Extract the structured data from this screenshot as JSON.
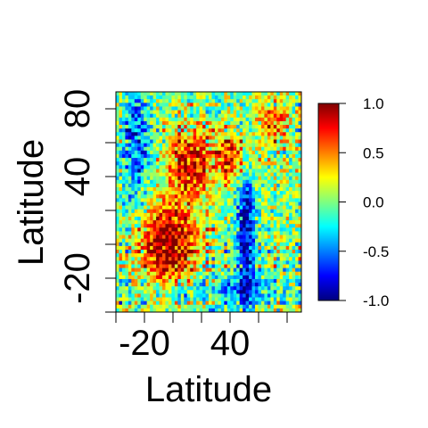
{
  "chart_data": {
    "type": "heatmap",
    "title": "",
    "xlabel": "Latitude",
    "ylabel": "Latitude",
    "x_range": [
      -40,
      90
    ],
    "y_range": [
      -40,
      90
    ],
    "x_ticks": [
      -40,
      -20,
      0,
      20,
      40,
      60,
      80
    ],
    "x_tick_labels": [
      {
        "value": -20,
        "label": "-20"
      },
      {
        "value": 40,
        "label": "40"
      }
    ],
    "y_ticks": [
      -40,
      -20,
      0,
      20,
      40,
      60,
      80
    ],
    "y_tick_labels": [
      {
        "value": -20,
        "label": "-20"
      },
      {
        "value": 40,
        "label": "40"
      },
      {
        "value": 80,
        "label": "80"
      }
    ],
    "value_range": [
      -1.0,
      1.0
    ],
    "colorbar": {
      "ticks": [
        {
          "value": 1.0,
          "label": "1.0"
        },
        {
          "value": 0.5,
          "label": "0.5"
        },
        {
          "value": 0.0,
          "label": "0.0"
        },
        {
          "value": -0.5,
          "label": "-0.5"
        },
        {
          "value": -1.0,
          "label": "-1.0"
        }
      ],
      "colors": [
        "#00007f",
        "#0000ff",
        "#007fff",
        "#00ffff",
        "#7fff7f",
        "#ffff00",
        "#ff7f00",
        "#ff0000",
        "#7f0000"
      ]
    },
    "grid": false,
    "legend_position": "right"
  }
}
